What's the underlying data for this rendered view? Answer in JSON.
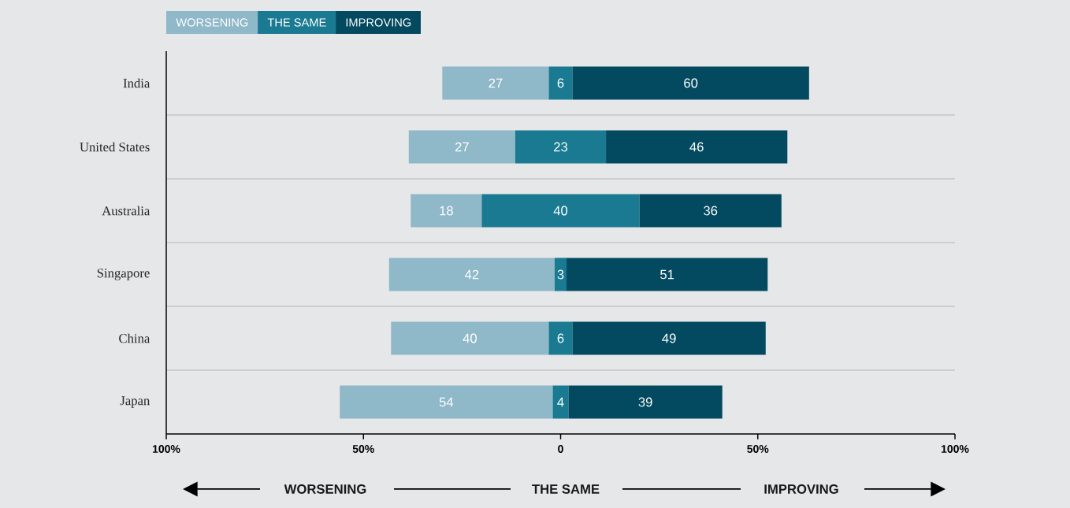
{
  "chart_data": {
    "type": "bar",
    "orientation": "horizontal",
    "categories": [
      "India",
      "United States",
      "Australia",
      "Singapore",
      "China",
      "Japan"
    ],
    "series": [
      {
        "name": "WORSENING",
        "color": "#8fb8c8",
        "values": [
          27,
          27,
          18,
          42,
          40,
          54
        ],
        "base": [
          -30,
          -38.5,
          -38,
          -43.5,
          -43,
          -56
        ]
      },
      {
        "name": "THE SAME",
        "color": "#1a7a91",
        "values": [
          6,
          23,
          40,
          3,
          6,
          4
        ],
        "base": [
          -3,
          -11.5,
          -20,
          -1.5,
          -3,
          -2
        ]
      },
      {
        "name": "IMPROVING",
        "color": "#034a60",
        "values": [
          60,
          46,
          36,
          51,
          49,
          39
        ],
        "base": [
          3,
          11.5,
          20,
          1.5,
          3,
          2
        ]
      }
    ],
    "xlim": [
      -100,
      100
    ],
    "xticks": [
      {
        "value": -100,
        "label": "100%"
      },
      {
        "value": -50,
        "label": "50%"
      },
      0,
      {
        "value": 50,
        "label": "50%"
      },
      {
        "value": 100,
        "label": "100%"
      }
    ],
    "data_labels": true,
    "legend": "top left",
    "grid": "y",
    "annotations": [
      "WORSENING",
      "THE SAME",
      "IMPROVING"
    ]
  }
}
